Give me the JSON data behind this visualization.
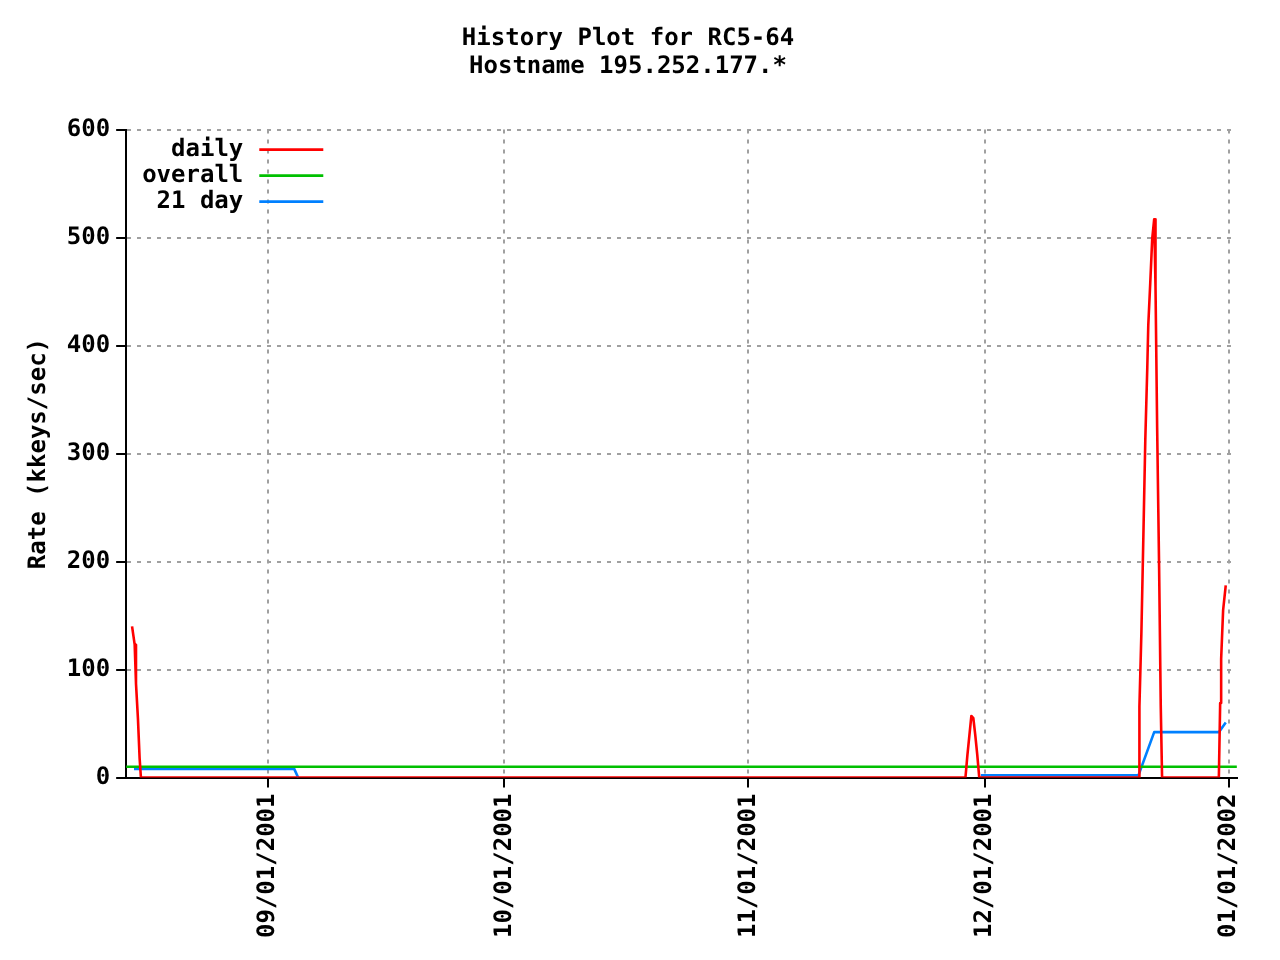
{
  "chart_data": {
    "type": "line",
    "title": "History Plot for RC5-64",
    "subtitle": "Hostname 195.252.177.*",
    "ylabel": "Rate (kkeys/sec)",
    "xlim": [
      "2001-08-14",
      "2002-01-02"
    ],
    "xticks": [
      {
        "value": "2001-09-01",
        "label": "09/01/2001"
      },
      {
        "value": "2001-10-01",
        "label": "10/01/2001"
      },
      {
        "value": "2001-11-01",
        "label": "11/01/2001"
      },
      {
        "value": "2001-12-01",
        "label": "12/01/2001"
      },
      {
        "value": "2002-01-01",
        "label": "01/01/2002"
      }
    ],
    "ylim": [
      0,
      600
    ],
    "yticks": [
      0,
      100,
      200,
      300,
      400,
      500,
      600
    ],
    "grid": true,
    "legend": "top left",
    "line_style": "solid",
    "marker": "none",
    "series": [
      {
        "name": "daily",
        "color": "#ff0000",
        "x": [
          "2001-08-14T18:00",
          "2001-08-15T02:00",
          "2001-08-15T06:00",
          "2001-08-15T12:00",
          "2001-08-15T17:00",
          "2001-08-15T21:00",
          "2001-11-28T13:00",
          "2001-11-28T19:00",
          "2001-11-29T01:00",
          "2001-11-29T07:00",
          "2001-11-29T13:00",
          "2001-11-29T19:00",
          "2001-11-30T01:00",
          "2001-11-30T07:00",
          "2001-12-20T12:00",
          "2001-12-20T15:00",
          "2001-12-20T21:00",
          "2001-12-21T03:00",
          "2001-12-21T09:00",
          "2001-12-21T15:00",
          "2001-12-21T18:00",
          "2001-12-22T00:00",
          "2001-12-22T06:00",
          "2001-12-22T12:00",
          "2001-12-22T16:00",
          "2001-12-22T21:00",
          "2001-12-23T03:00",
          "2001-12-23T08:00",
          "2001-12-23T12:00",
          "2001-12-30T17:00",
          "2001-12-30T21:00",
          "2001-12-31T00:00",
          "2001-12-31T06:00",
          "2001-12-31T14:00"
        ],
        "values": [
          140,
          123,
          87,
          54,
          18,
          0,
          0,
          21,
          39,
          57,
          55,
          39,
          21,
          0,
          0,
          66,
          134,
          223,
          314,
          380,
          419,
          458,
          499,
          517,
          455,
          324,
          194,
          66,
          0,
          0,
          69,
          110,
          155,
          178
        ]
      },
      {
        "name": "overall",
        "color": "#00c000",
        "x": [
          "2001-08-14",
          "2002-01-02"
        ],
        "values": [
          10,
          10
        ]
      },
      {
        "name": "21 day",
        "color": "#0080ff",
        "x": [
          "2001-08-15",
          "2001-09-04T08:00",
          "2001-09-04T20:00",
          "2001-11-30T06:00",
          "2001-11-30T12:00",
          "2001-12-20T12:00",
          "2001-12-22T12:00",
          "2001-12-30T17:00",
          "2001-12-31T14:00"
        ],
        "values": [
          8,
          8,
          0,
          null,
          2,
          2,
          42,
          42,
          51
        ]
      }
    ]
  }
}
